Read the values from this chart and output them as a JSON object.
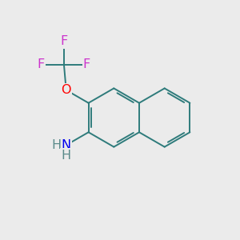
{
  "background_color": "#EBEBEB",
  "bond_color": "#2E7B7B",
  "bond_width": 1.4,
  "atom_colors": {
    "F": "#CC33CC",
    "O": "#FF0000",
    "N": "#0000EE",
    "H": "#5A8A8A"
  },
  "font_size": 11.5,
  "figsize": [
    3.0,
    3.0
  ],
  "dpi": 100,
  "xl": 0,
  "xr": 10,
  "yb": 0,
  "yt": 10
}
